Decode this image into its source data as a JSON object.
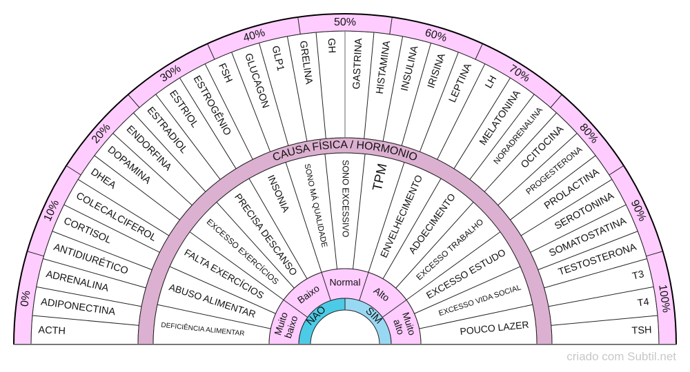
{
  "ring_title": "CAUSA FÍSICA / HORMONIO",
  "percentages": [
    "0%",
    "10%",
    "20%",
    "30%",
    "40%",
    "50%",
    "60%",
    "70%",
    "80%",
    "90%",
    "100%"
  ],
  "hormones": [
    "ACTH",
    "ADIPONECTINA",
    "ADRENALINA",
    "ANTIDIURÉTICO",
    "CORTISOL",
    "COLECALCIFEROL",
    "DHEA",
    "DOPAMINA",
    "ENDORFINA",
    "ESTRADIOL",
    "ESTRIOL",
    "ESTROGÊNIO",
    "FSH",
    "GLUCAGON",
    "GLP1",
    "GRELINA",
    "GH",
    "GASTRINA",
    "HISTAMINA",
    "INSULINA",
    "IRISINA",
    "LEPTINA",
    "LH",
    "MELATONINA",
    "NORADRENALINA",
    "OCITOCINA",
    "PROGESTERONA",
    "PROLACTINA",
    "SEROTONINA",
    "SOMATOSTATINA",
    "TESTOSTERONA",
    "T3",
    "T4",
    "TSH"
  ],
  "causes": [
    "DEFICIÊNCIA ALIMENTAR",
    "ABUSO ALIMENTAR",
    "FALTA EXERCÍCIOS",
    "EXCESSO EXERCÍCIOS",
    "PRECISA DESCANSO",
    "INSONIA",
    "SONO MÁ QUALIDADE",
    "SONO EXCESSIVO",
    "TPM",
    "ENVELHECIMENTO",
    "ADOECIMENTO",
    "EXCESSO TRABALHO",
    "EXCESSO ESTUDO",
    "EXCESSO VIDA SOCIAL",
    "POUCO LAZER"
  ],
  "levels": [
    [
      "Muito",
      "baixo"
    ],
    [
      "Baixo"
    ],
    [
      "Normal"
    ],
    [
      "Alto"
    ],
    [
      "Muito",
      "alto"
    ]
  ],
  "yes_no": [
    "NAO",
    "SIM"
  ],
  "watermark": "criado com Subtil.net",
  "colors": {
    "pink": "#ffccff",
    "mauve": "#dcb0d0",
    "nao": "#4ccbe6",
    "sim": "#99d8f2"
  }
}
